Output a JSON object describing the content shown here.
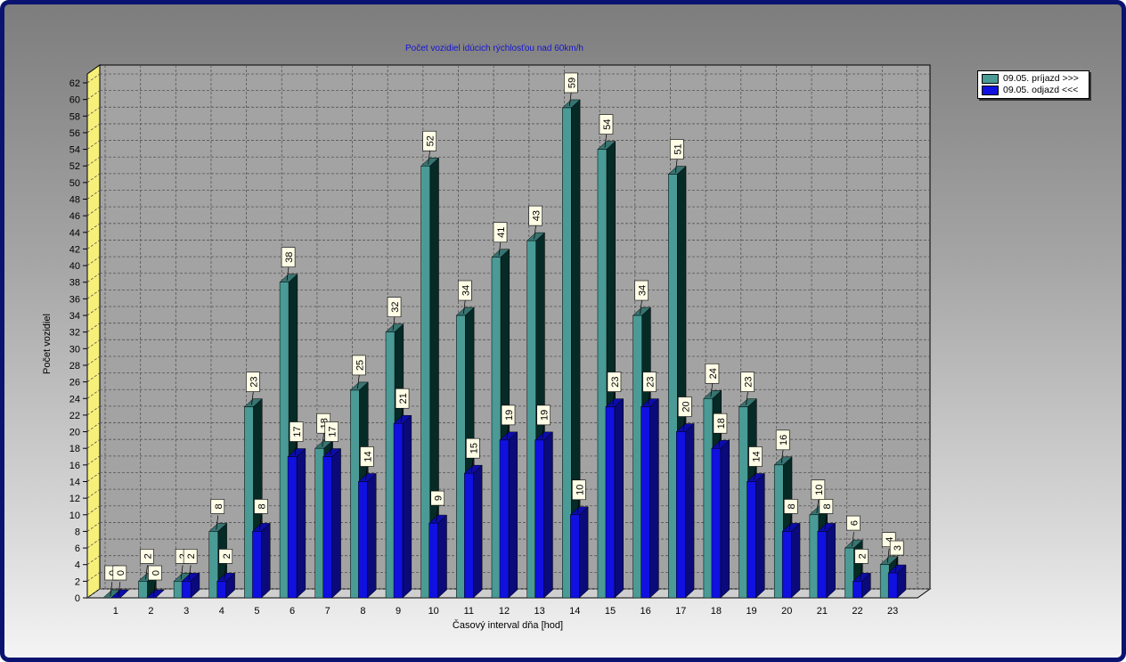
{
  "chart_data": {
    "type": "bar",
    "title": "Počet vozidiel idúcich rýchlosťou nad 60km/h",
    "xlabel": "Časový interval dňa [hod]",
    "ylabel": "Počet vozidiel",
    "categories": [
      "1",
      "2",
      "3",
      "4",
      "5",
      "6",
      "7",
      "8",
      "9",
      "10",
      "11",
      "12",
      "13",
      "14",
      "15",
      "16",
      "17",
      "18",
      "19",
      "20",
      "21",
      "22",
      "23"
    ],
    "series": [
      {
        "name": "09.05.  príjazd >>>",
        "color": "#4a9a96",
        "values": [
          0,
          2,
          2,
          8,
          23,
          38,
          18,
          25,
          32,
          52,
          34,
          41,
          43,
          59,
          54,
          34,
          51,
          24,
          23,
          16,
          10,
          6,
          4
        ]
      },
      {
        "name": "09.05.  odjazd <<<",
        "color": "#1010e0",
        "values": [
          0,
          0,
          2,
          2,
          8,
          17,
          17,
          14,
          21,
          9,
          15,
          19,
          19,
          10,
          23,
          23,
          20,
          18,
          14,
          8,
          8,
          2,
          3
        ]
      }
    ],
    "ylim": [
      0,
      62
    ],
    "ytick_step": 2,
    "grid": true,
    "legend_position": "top-right",
    "style": "3d-bars"
  }
}
